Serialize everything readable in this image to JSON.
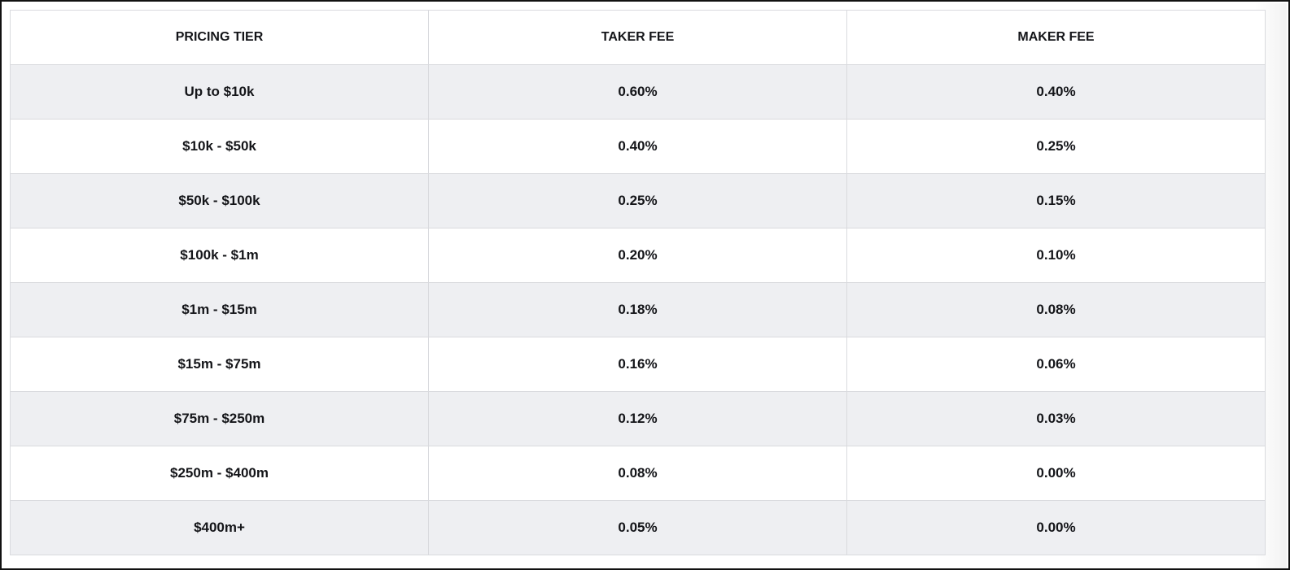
{
  "table": {
    "header": [
      "PRICING TIER",
      "TAKER FEE",
      "MAKER FEE"
    ],
    "rows": [
      [
        "Up to $10k",
        "0.60%",
        "0.40%"
      ],
      [
        "$10k - $50k",
        "0.40%",
        "0.25%"
      ],
      [
        "$50k - $100k",
        "0.25%",
        "0.15%"
      ],
      [
        "$100k - $1m",
        "0.20%",
        "0.10%"
      ],
      [
        "$1m - $15m",
        "0.18%",
        "0.08%"
      ],
      [
        "$15m - $75m",
        "0.16%",
        "0.06%"
      ],
      [
        "$75m - $250m",
        "0.12%",
        "0.03%"
      ],
      [
        "$250m - $400m",
        "0.08%",
        "0.00%"
      ],
      [
        "$400m+",
        "0.05%",
        "0.00%"
      ]
    ]
  }
}
